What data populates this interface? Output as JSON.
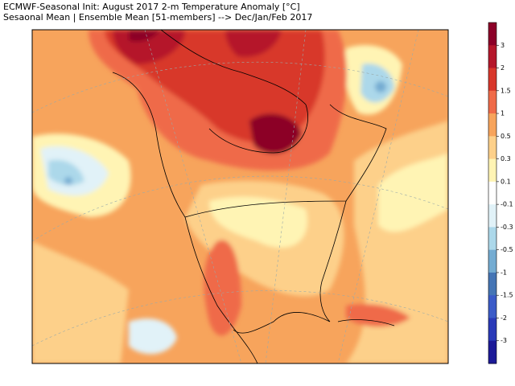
{
  "header": {
    "lines": [
      "ECMWF-Seasonal Init: August 2017 2-m Temperature Anomaly [°C]",
      "Sesaonal Mean | Ensemble Mean [51-members] --> Dec/Jan/Feb 2017"
    ]
  },
  "colorbar": {
    "levels": [
      3,
      2,
      1.5,
      1,
      0.5,
      0.3,
      0.1,
      -0.1,
      -0.3,
      -0.5,
      -1,
      -1.5,
      -2,
      -3
    ],
    "colors": [
      "#8c0028",
      "#b5172b",
      "#d8372b",
      "#ef6b49",
      "#f7a45c",
      "#fdd08a",
      "#fff4b4",
      "#ffffff",
      "#e1f2f8",
      "#acd8ea",
      "#74acd2",
      "#4575b5",
      "#3b5bc8",
      "#2a3ab8",
      "#1c1a98"
    ]
  }
}
